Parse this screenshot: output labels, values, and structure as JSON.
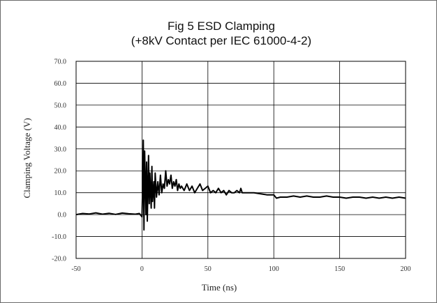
{
  "chart_data": {
    "type": "line",
    "title_line1": "Fig 5 ESD Clamping",
    "title_line2": "(+8kV Contact per IEC 61000-4-2)",
    "xlabel": "Time (ns)",
    "ylabel": "Clamping Voltage (V)",
    "xlim": [
      -50,
      200
    ],
    "ylim": [
      -20,
      70
    ],
    "xticks": [
      -50,
      0,
      50,
      100,
      150,
      200
    ],
    "yticks": [
      -20,
      -10,
      0,
      10,
      20,
      30,
      40,
      50,
      60,
      70
    ],
    "xtick_labels": [
      "-50",
      "0",
      "50",
      "100",
      "150",
      "200"
    ],
    "ytick_labels": [
      "-20.0",
      "-10.0",
      "0.0",
      "10.0",
      "20.0",
      "30.0",
      "40.0",
      "50.0",
      "60.0",
      "70.0"
    ],
    "grid": true,
    "series_color": "#000000",
    "series": [
      {
        "x": [
          -50,
          -45,
          -40,
          -35,
          -30,
          -25,
          -20,
          -15,
          -10,
          -5,
          -2,
          0,
          0.5,
          1,
          1.5,
          2,
          3,
          3.5,
          4,
          5,
          5.5,
          6,
          7,
          7.5,
          8,
          9,
          9.5,
          10,
          11,
          12,
          13,
          14,
          15,
          16,
          17,
          18,
          19,
          20,
          21,
          22,
          23,
          24,
          25,
          26,
          27,
          28,
          29,
          30,
          32,
          34,
          36,
          38,
          40,
          42,
          44,
          46,
          48,
          50,
          52,
          54,
          56,
          58,
          60,
          62,
          64,
          66,
          68,
          70,
          72,
          74,
          75,
          76,
          78,
          80,
          85,
          90,
          95,
          100,
          102,
          105,
          110,
          115,
          120,
          125,
          130,
          135,
          140,
          145,
          150,
          155,
          160,
          165,
          170,
          175,
          180,
          185,
          190,
          195,
          200
        ],
        "y": [
          0,
          0.5,
          0.3,
          0.8,
          0.2,
          0.6,
          0.1,
          0.7,
          0.4,
          0.2,
          0.5,
          -1,
          12,
          34,
          -7,
          29,
          0,
          24,
          -3,
          27,
          5,
          19,
          3,
          22,
          6,
          15,
          3,
          19,
          8,
          15,
          9,
          18,
          10,
          14,
          12,
          20,
          13,
          16,
          14,
          18,
          12,
          15,
          13,
          16,
          11,
          14,
          12,
          13,
          11,
          14,
          11,
          13,
          10,
          12,
          14,
          11,
          12,
          13,
          10,
          11,
          10,
          12,
          10,
          11,
          9,
          11,
          10,
          10,
          11,
          10,
          12,
          10,
          10,
          10,
          10,
          9.5,
          9,
          9,
          7.5,
          8,
          8,
          8.5,
          8,
          8.5,
          8,
          8,
          8.5,
          8,
          8,
          7.5,
          8,
          8,
          7.5,
          8,
          7.5,
          8,
          7.5,
          8,
          7.5
        ]
      }
    ]
  }
}
